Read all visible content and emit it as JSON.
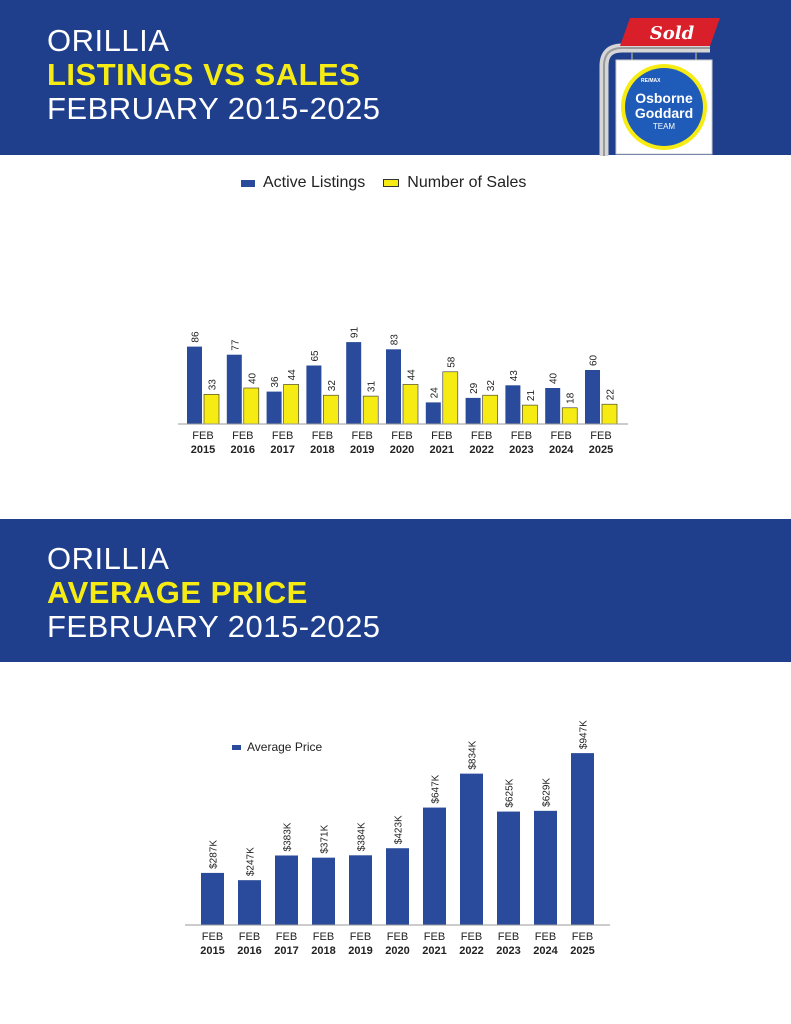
{
  "section1": {
    "title_line1": "ORILLIA",
    "title_line2": "LISTINGS VS SALES",
    "title_line3": "FEBRUARY 2015-2025"
  },
  "section2": {
    "title_line1": "ORILLIA",
    "title_line2": "AVERAGE PRICE",
    "title_line3": "FEBRUARY 2015-2025"
  },
  "logo": {
    "sold_label": "Sold",
    "brand_small": "RE/MAX",
    "name_line1": "Osborne",
    "name_line2": "Goddard",
    "name_line3": "TEAM"
  },
  "colors": {
    "banner": "#1f3f8c",
    "highlight": "#f6ec14",
    "listings": "#2a4b9b",
    "sales": "#f6ec14",
    "sold_red": "#d9202a"
  },
  "chart_data": [
    {
      "type": "bar",
      "title": "",
      "categories": [
        [
          "FEB",
          "2015"
        ],
        [
          "FEB",
          "2016"
        ],
        [
          "FEB",
          "2017"
        ],
        [
          "FEB",
          "2018"
        ],
        [
          "FEB",
          "2019"
        ],
        [
          "FEB",
          "2020"
        ],
        [
          "FEB",
          "2021"
        ],
        [
          "FEB",
          "2022"
        ],
        [
          "FEB",
          "2023"
        ],
        [
          "FEB",
          "2024"
        ],
        [
          "FEB",
          "2025"
        ]
      ],
      "series": [
        {
          "name": "Active Listings",
          "values": [
            86,
            77,
            36,
            65,
            91,
            83,
            24,
            29,
            43,
            40,
            60
          ],
          "labels": [
            "86",
            "77",
            "36",
            "65",
            "91",
            "83",
            "24",
            "29",
            "43",
            "40",
            "60"
          ]
        },
        {
          "name": "Number of Sales",
          "values": [
            33,
            40,
            44,
            32,
            31,
            44,
            58,
            32,
            21,
            18,
            22
          ],
          "labels": [
            "33",
            "40",
            "44",
            "32",
            "31",
            "44",
            "58",
            "32",
            "21",
            "18",
            "22"
          ]
        }
      ],
      "ylim": [
        0,
        100
      ],
      "legend": "top-center",
      "grid": false
    },
    {
      "type": "bar",
      "title": "",
      "categories": [
        [
          "FEB",
          "2015"
        ],
        [
          "FEB",
          "2016"
        ],
        [
          "FEB",
          "2017"
        ],
        [
          "FEB",
          "2018"
        ],
        [
          "FEB",
          "2019"
        ],
        [
          "FEB",
          "2020"
        ],
        [
          "FEB",
          "2021"
        ],
        [
          "FEB",
          "2022"
        ],
        [
          "FEB",
          "2023"
        ],
        [
          "FEB",
          "2024"
        ],
        [
          "FEB",
          "2025"
        ]
      ],
      "series": [
        {
          "name": "Average Price",
          "values": [
            287,
            247,
            383,
            371,
            384,
            423,
            647,
            834,
            625,
            629,
            947
          ],
          "labels": [
            "$287K",
            "$247K",
            "$383K",
            "$371K",
            "$384K",
            "$423K",
            "$647K",
            "$834K",
            "$625K",
            "$629K",
            "$947K"
          ]
        }
      ],
      "ylim": [
        0,
        1000
      ],
      "legend": "top-left",
      "grid": false
    }
  ]
}
